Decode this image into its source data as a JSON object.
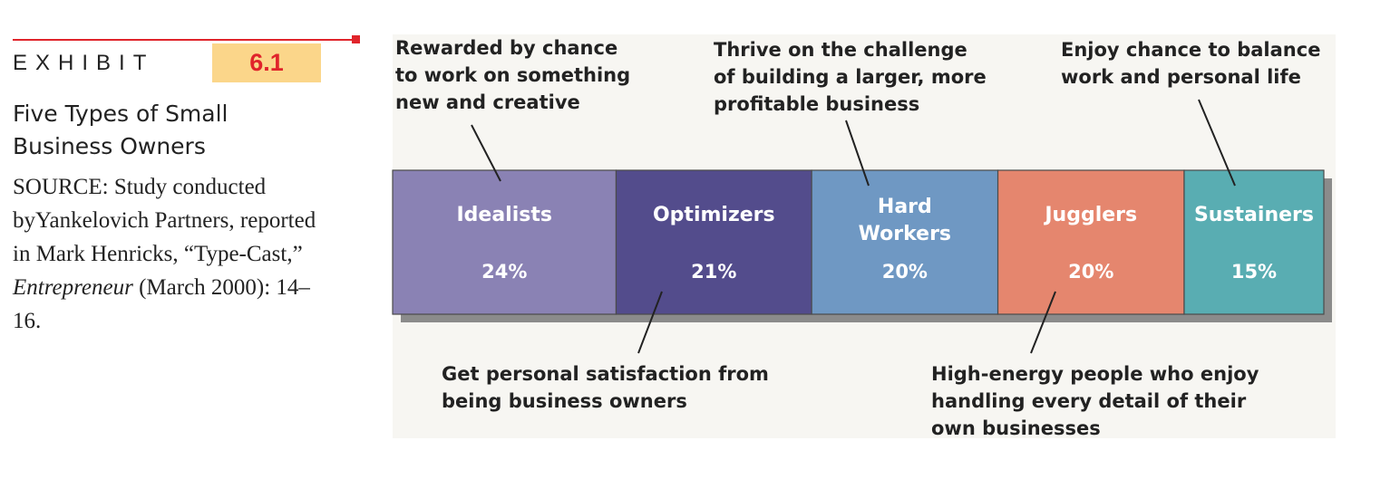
{
  "exhibit": {
    "label": "EXHIBIT",
    "number": "6.1",
    "title": "Five Types of Small Business Owners",
    "source_prefix": "SOURCE:  Study conducted byYankelovich Partners, reported in Mark Henricks, “Type-Cast,” ",
    "source_publication": "Entrepreneur",
    "source_suffix": " (March 2000): 14–16."
  },
  "colors": {
    "accent_red": "#e0242b",
    "number_box": "#fbd68a"
  },
  "chart_data": {
    "type": "bar",
    "orientation": "horizontal-stacked",
    "unit": "%",
    "categories": [
      "Idealists",
      "Optimizers",
      "Hard Workers",
      "Jugglers",
      "Sustainers"
    ],
    "values": [
      24,
      21,
      20,
      20,
      15
    ],
    "value_labels": [
      "24%",
      "21%",
      "20%",
      "20%",
      "15%"
    ],
    "colors": [
      "#8a82b4",
      "#534c8c",
      "#6f98c3",
      "#e5866e",
      "#59adb2"
    ],
    "annotations": [
      {
        "category": "Idealists",
        "position": "above",
        "text": [
          "Rewarded by chance",
          "to work on something",
          "new and creative"
        ]
      },
      {
        "category": "Optimizers",
        "position": "below",
        "text": [
          "Get personal satisfaction from",
          "being business owners"
        ]
      },
      {
        "category": "Hard Workers",
        "position": "above",
        "text": [
          "Thrive on the challenge",
          "of building a larger, more",
          "profitable business"
        ]
      },
      {
        "category": "Jugglers",
        "position": "below",
        "text": [
          "High-energy people who enjoy",
          "handling every detail of their",
          "own businesses"
        ]
      },
      {
        "category": "Sustainers",
        "position": "above",
        "text": [
          "Enjoy chance to balance",
          "work and personal life"
        ]
      }
    ]
  }
}
